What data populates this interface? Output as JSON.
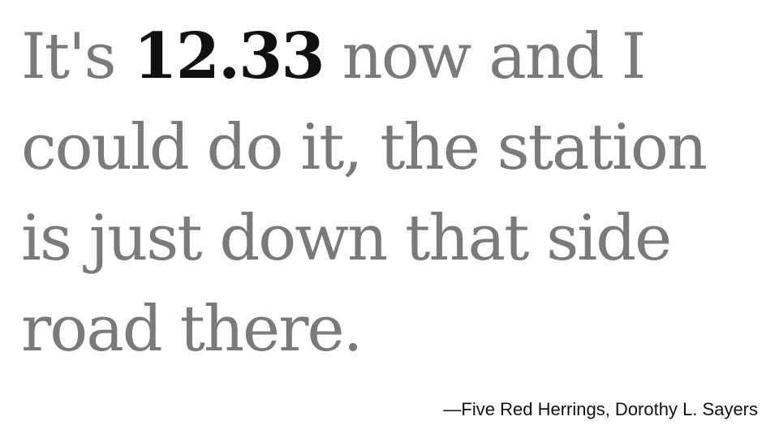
{
  "quote": {
    "before": "It's ",
    "time": "12.33",
    "after": " now and I could do it, the station is just down that side road there."
  },
  "attribution": "—Five Red Herrings, Dorothy L. Sayers",
  "colors": {
    "background": "#ffffff",
    "quote_text": "#7a7a7a",
    "time_text": "#111111",
    "attribution_text": "#111111"
  }
}
